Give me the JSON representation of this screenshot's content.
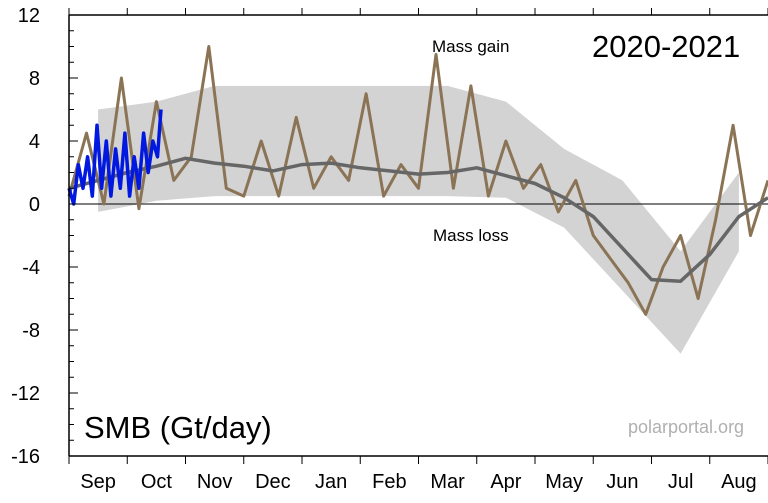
{
  "chart_data": {
    "type": "line",
    "title": "2020-2021",
    "ylabel": "SMB (Gt/day)",
    "xlabel": "",
    "ylim": [
      -16,
      12
    ],
    "yticks": [
      12,
      8,
      4,
      0,
      -4,
      -8,
      -12,
      -16
    ],
    "categories": [
      "Sep",
      "Oct",
      "Nov",
      "Dec",
      "Jan",
      "Feb",
      "Mar",
      "Apr",
      "May",
      "Jun",
      "Jul",
      "Aug"
    ],
    "annotations": {
      "gain": "Mass gain",
      "loss": "Mass loss"
    },
    "credit": "polarportal.org",
    "grid": false,
    "colors": {
      "band": "#d3d3d3",
      "mean": "#666666",
      "record": "#8b7355",
      "current": "#0018e0",
      "zero_line": "#000000"
    },
    "series": [
      {
        "role": "band",
        "x": [
          0,
          1,
          2,
          3,
          4,
          5,
          6,
          7,
          8,
          9,
          10,
          11
        ],
        "low": [
          -0.5,
          0.2,
          0.5,
          0.5,
          0.5,
          0.5,
          0.5,
          0.4,
          -1.5,
          -5.5,
          -9.5,
          -3.0
        ],
        "high": [
          6.0,
          6.5,
          7.5,
          7.5,
          7.5,
          7.5,
          7.5,
          6.5,
          3.5,
          1.5,
          -3.0,
          2.0
        ]
      },
      {
        "role": "mean",
        "x": [
          0,
          0.5,
          1,
          1.5,
          2,
          2.5,
          3,
          3.5,
          4,
          4.5,
          5,
          5.5,
          6,
          6.5,
          7,
          7.5,
          8,
          8.5,
          9,
          9.5,
          10,
          10.5,
          11,
          11.5,
          12
        ],
        "y": [
          1.0,
          1.5,
          2.0,
          2.4,
          2.9,
          2.6,
          2.4,
          2.1,
          2.5,
          2.6,
          2.3,
          2.1,
          1.9,
          2.0,
          2.3,
          1.8,
          1.3,
          0.4,
          -0.8,
          -2.8,
          -4.8,
          -4.9,
          -3.2,
          -0.8,
          0.4
        ]
      },
      {
        "role": "record",
        "x": [
          0,
          0.3,
          0.6,
          0.9,
          1.2,
          1.5,
          1.8,
          2.1,
          2.4,
          2.7,
          3.0,
          3.3,
          3.6,
          3.9,
          4.2,
          4.5,
          4.8,
          5.1,
          5.4,
          5.7,
          6.0,
          6.3,
          6.6,
          6.9,
          7.2,
          7.5,
          7.8,
          8.1,
          8.4,
          8.7,
          9.0,
          9.3,
          9.6,
          9.9,
          10.2,
          10.5,
          10.8,
          11.1,
          11.4,
          11.7,
          12
        ],
        "y": [
          0.5,
          4.5,
          0.0,
          8.0,
          -0.3,
          6.5,
          1.5,
          3.0,
          10.0,
          1.0,
          0.5,
          4.0,
          0.5,
          5.5,
          1.0,
          3.0,
          1.5,
          7.0,
          0.5,
          2.5,
          1.0,
          9.5,
          1.0,
          7.5,
          0.5,
          4.0,
          1.0,
          2.5,
          -0.5,
          1.5,
          -2.0,
          -3.5,
          -5.0,
          -7.0,
          -4.0,
          -2.0,
          -6.0,
          -1.0,
          5.0,
          -2.0,
          1.5
        ]
      },
      {
        "role": "current",
        "x": [
          0,
          0.08,
          0.16,
          0.24,
          0.32,
          0.4,
          0.48,
          0.56,
          0.64,
          0.72,
          0.8,
          0.88,
          0.96,
          1.04,
          1.12,
          1.2,
          1.28,
          1.36,
          1.44,
          1.52,
          1.58
        ],
        "y": [
          1.0,
          0.0,
          2.5,
          1.0,
          3.0,
          0.5,
          5.0,
          1.0,
          4.0,
          0.5,
          3.5,
          1.0,
          4.5,
          0.5,
          3.0,
          1.0,
          4.5,
          2.0,
          4.0,
          3.0,
          6.0
        ]
      }
    ]
  }
}
